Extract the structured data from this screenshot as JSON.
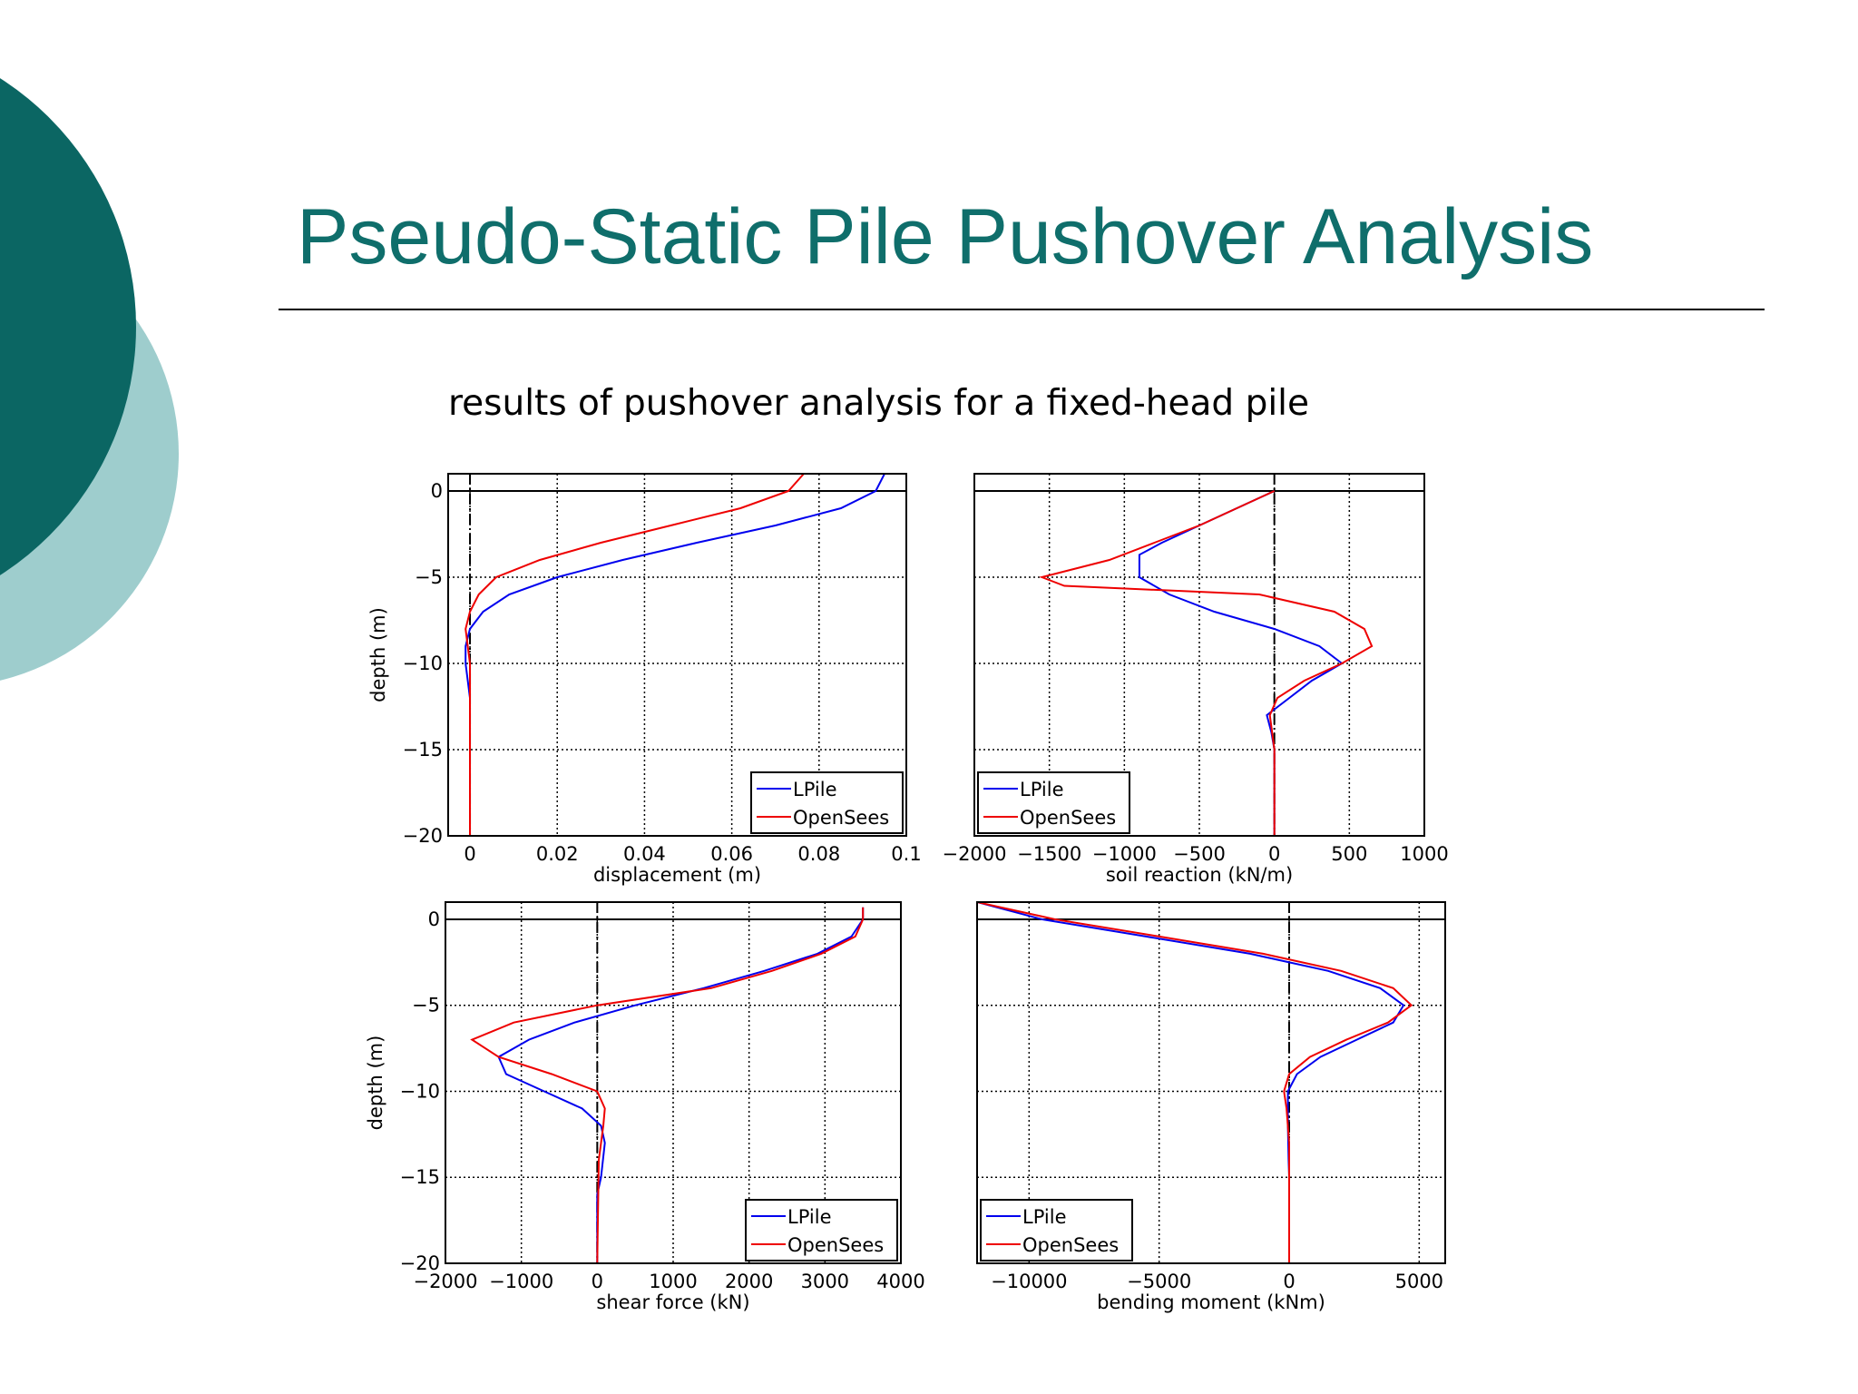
{
  "slide": {
    "title": "Pseudo-Static Pile Pushover Analysis",
    "subtitle": "results of pushover analysis for a fixed-head pile"
  },
  "chart_data": [
    {
      "type": "line",
      "xlabel": "displacement (m)",
      "ylabel": "depth (m)",
      "xlim": [
        -0.005,
        0.1
      ],
      "ylim": [
        -20,
        1
      ],
      "xticks": [
        0,
        0.02,
        0.04,
        0.06,
        0.08,
        0.1
      ],
      "yticks": [
        {
          "value": -20,
          "label": "−20"
        },
        {
          "value": -15,
          "label": "−15"
        },
        {
          "value": -10,
          "label": "−10"
        },
        {
          "value": -5,
          "label": "−5"
        },
        0
      ],
      "show_ytick_labels": true,
      "grid": true,
      "hline": 0,
      "vline": 0,
      "legend": "lower right",
      "series": [
        {
          "name": "LPile",
          "color": "#0000ee",
          "x": [
            0.095,
            0.093,
            0.085,
            0.07,
            0.052,
            0.035,
            0.02,
            0.009,
            0.003,
            0,
            -0.001,
            -0.001,
            -0.0005,
            0,
            0
          ],
          "y": [
            1,
            0,
            -1,
            -2,
            -3,
            -4,
            -5,
            -6,
            -7,
            -8,
            -9,
            -10,
            -11,
            -12,
            -20
          ]
        },
        {
          "name": "OpenSees",
          "color": "#ee0000",
          "x": [
            0.0765,
            0.073,
            0.062,
            0.046,
            0.03,
            0.016,
            0.006,
            0.002,
            0,
            -0.001,
            -0.0005,
            0,
            0
          ],
          "y": [
            1,
            0,
            -1,
            -2,
            -3,
            -4,
            -5,
            -6,
            -7,
            -8,
            -9,
            -10,
            -20
          ]
        }
      ]
    },
    {
      "type": "line",
      "xlabel": "soil reaction (kN/m)",
      "xlim": [
        -2000,
        1000
      ],
      "ylim": [
        -20,
        1
      ],
      "xticks": [
        {
          "value": -2000,
          "label": "−2000"
        },
        {
          "value": -1500,
          "label": "−1500"
        },
        {
          "value": -1000,
          "label": "−1000"
        },
        {
          "value": -500,
          "label": "−500"
        },
        0,
        500,
        1000
      ],
      "yticks": [
        -20,
        -15,
        -10,
        -5,
        0
      ],
      "show_ytick_labels": false,
      "grid": true,
      "hline": 0,
      "vline": 0,
      "legend": "lower left",
      "series": [
        {
          "name": "LPile",
          "color": "#0000ee",
          "x": [
            0,
            -250,
            -500,
            -750,
            -900,
            -900,
            -700,
            -400,
            0,
            300,
            450,
            250,
            100,
            -50,
            -20,
            0,
            0
          ],
          "y": [
            0,
            -1,
            -2,
            -3,
            -3.7,
            -5,
            -6,
            -7,
            -8,
            -9,
            -10,
            -11,
            -12,
            -13,
            -14,
            -15,
            -20
          ]
        },
        {
          "name": "OpenSees",
          "color": "#ee0000",
          "x": [
            0,
            -250,
            -500,
            -800,
            -1100,
            -1550,
            -1400,
            -100,
            400,
            600,
            650,
            450,
            200,
            20,
            -30,
            0,
            0
          ],
          "y": [
            0,
            -1,
            -2,
            -3,
            -4,
            -5,
            -5.5,
            -6,
            -7,
            -8,
            -9,
            -10,
            -11,
            -12,
            -13,
            -15,
            -20
          ]
        }
      ]
    },
    {
      "type": "line",
      "xlabel": "shear force (kN)",
      "ylabel": "depth (m)",
      "xlim": [
        -2000,
        4000
      ],
      "ylim": [
        -20,
        1
      ],
      "xticks": [
        {
          "value": -2000,
          "label": "−2000"
        },
        {
          "value": -1000,
          "label": "−1000"
        },
        0,
        1000,
        2000,
        3000,
        4000
      ],
      "yticks": [
        {
          "value": -20,
          "label": "−20"
        },
        {
          "value": -15,
          "label": "−15"
        },
        {
          "value": -10,
          "label": "−10"
        },
        {
          "value": -5,
          "label": "−5"
        },
        0
      ],
      "show_ytick_labels": true,
      "grid": true,
      "hline": 0,
      "vline": 0,
      "legend": "lower right",
      "series": [
        {
          "name": "LPile",
          "color": "#0000ee",
          "x": [
            3500,
            3500,
            3350,
            2900,
            2200,
            1400,
            500,
            -300,
            -900,
            -1300,
            -1200,
            -700,
            -200,
            50,
            100,
            50,
            0,
            0
          ],
          "y": [
            0.7,
            0,
            -1,
            -2,
            -3,
            -4,
            -5,
            -6,
            -7,
            -8,
            -9,
            -10,
            -11,
            -12,
            -13,
            -15,
            -16,
            -20
          ]
        },
        {
          "name": "OpenSees",
          "color": "#ee0000",
          "x": [
            3500,
            3500,
            3400,
            2950,
            2300,
            1500,
            0,
            -1100,
            -1650,
            -1300,
            -600,
            0,
            100,
            80,
            20,
            0
          ],
          "y": [
            0.7,
            0,
            -1,
            -2,
            -3,
            -4,
            -5,
            -6,
            -7,
            -8,
            -9,
            -10,
            -11,
            -12,
            -14,
            -20
          ]
        }
      ]
    },
    {
      "type": "line",
      "xlabel": "bending moment (kNm)",
      "xlim": [
        -12000,
        6000
      ],
      "ylim": [
        -20,
        1
      ],
      "xticks": [
        {
          "value": -10000,
          "label": "−10000"
        },
        {
          "value": -5000,
          "label": "−5000"
        },
        0,
        5000
      ],
      "yticks": [
        -20,
        -15,
        -10,
        -5,
        0
      ],
      "show_ytick_labels": false,
      "grid": true,
      "hline": 0,
      "vline": 0,
      "legend": "lower left",
      "series": [
        {
          "name": "LPile",
          "color": "#0000ee",
          "x": [
            -12000,
            -9500,
            -5500,
            -1500,
            1500,
            3500,
            4400,
            4000,
            2600,
            1200,
            300,
            -50,
            -50,
            -50,
            -20,
            0,
            0
          ],
          "y": [
            1,
            0,
            -1,
            -2,
            -3,
            -4,
            -5,
            -6,
            -7,
            -8,
            -9,
            -10,
            -11,
            -12,
            -14,
            -15,
            -20
          ]
        },
        {
          "name": "OpenSees",
          "color": "#ee0000",
          "x": [
            -12000,
            -9000,
            -5000,
            -1000,
            2000,
            4000,
            4700,
            3800,
            2200,
            800,
            0,
            -200,
            -100,
            0,
            0
          ],
          "y": [
            1,
            0,
            -1,
            -2,
            -3,
            -4,
            -5,
            -6,
            -7,
            -8,
            -9,
            -10,
            -11,
            -13,
            -20
          ]
        }
      ]
    }
  ]
}
